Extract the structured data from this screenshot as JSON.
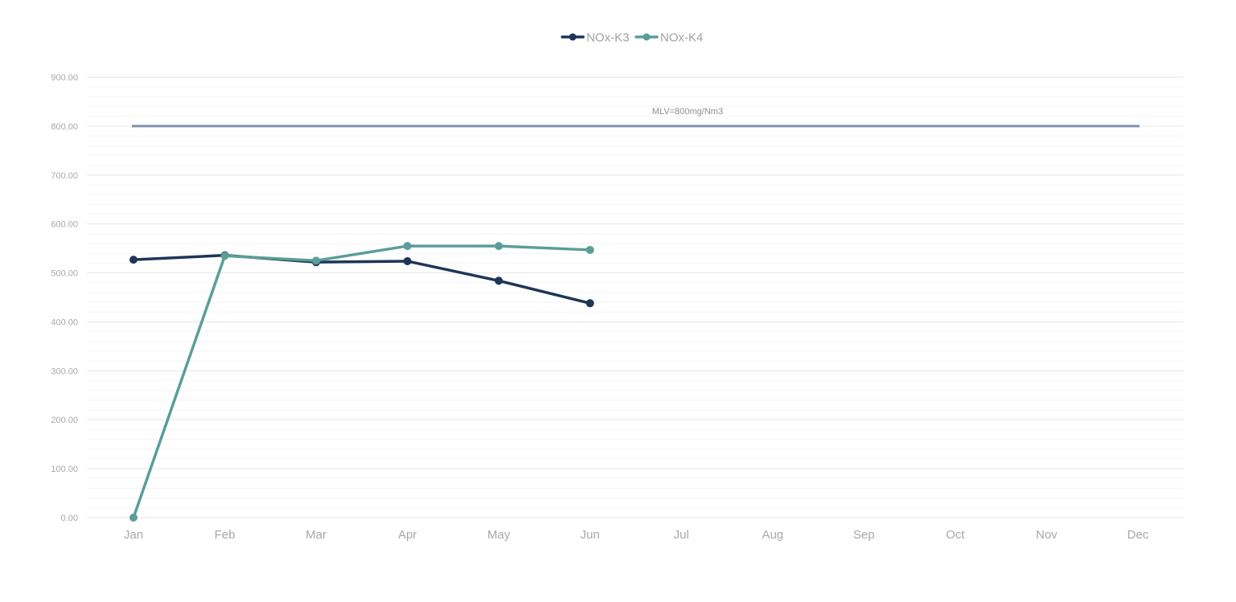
{
  "chart_data": {
    "type": "line",
    "title": "",
    "xlabel": "",
    "ylabel": "",
    "categories": [
      "Jan",
      "Feb",
      "Mar",
      "Apr",
      "May",
      "Jun",
      "Jul",
      "Aug",
      "Sep",
      "Oct",
      "Nov",
      "Dec"
    ],
    "ylim": [
      0,
      900
    ],
    "yticks": [
      "0.00",
      "100.00",
      "200.00",
      "300.00",
      "400.00",
      "500.00",
      "600.00",
      "700.00",
      "800.00",
      "900.00"
    ],
    "grid": true,
    "legend_position": "top-center",
    "series": [
      {
        "name": "NOx-K3",
        "color": "#1d3557",
        "values": [
          527,
          536,
          522,
          524,
          484,
          438,
          null,
          null,
          null,
          null,
          null,
          null
        ]
      },
      {
        "name": "NOx-K4",
        "color": "#5a9e97",
        "values": [
          0,
          535,
          525,
          555,
          555,
          547,
          null,
          null,
          null,
          null,
          null,
          null
        ]
      }
    ],
    "reference_line": {
      "value": 800,
      "label": "MLV=800mg/Nm3",
      "color": "#7f91ab"
    }
  }
}
